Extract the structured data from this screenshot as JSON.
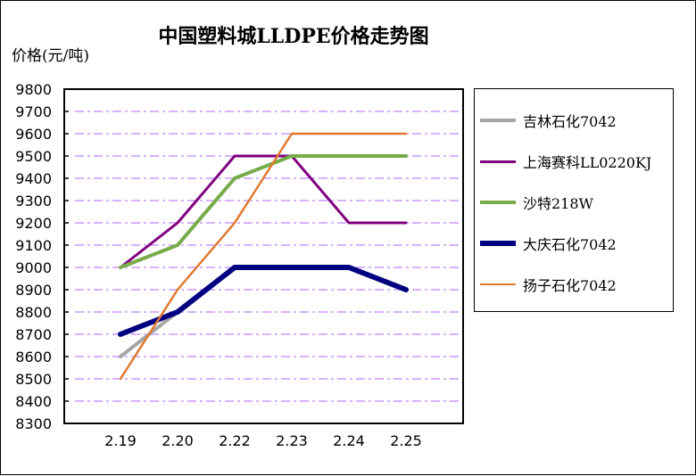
{
  "chart_data": {
    "type": "line",
    "title": "中国塑料城LLDPE价格走势图",
    "ylabel": "价格(元/吨)",
    "xlabel": "",
    "categories": [
      "2.19",
      "2.20",
      "2.22",
      "2.23",
      "2.24",
      "2.25"
    ],
    "ylim": [
      8300,
      9800
    ],
    "yticks": [
      "9800",
      "9700",
      "9600",
      "9500",
      "9400",
      "9300",
      "9200",
      "9100",
      "9000",
      "8900",
      "8800",
      "8700",
      "8600",
      "8500",
      "8400",
      "8300"
    ],
    "grid": true,
    "legend_position": "right",
    "series": [
      {
        "name": "吉林石化7042",
        "color": "#a6a6a6",
        "values": [
          8600,
          8800,
          9000,
          9000,
          9000,
          8900
        ]
      },
      {
        "name": "上海赛科LL0220KJ",
        "color": "#800080",
        "values": [
          9000,
          9200,
          9500,
          9500,
          9200,
          9200
        ]
      },
      {
        "name": "沙特218W",
        "color": "#77ac48",
        "values": [
          9000,
          9100,
          9400,
          9500,
          9500,
          9500
        ]
      },
      {
        "name": "大庆石化7042",
        "color": "#000080",
        "values": [
          8700,
          8800,
          9000,
          9000,
          9000,
          8900
        ]
      },
      {
        "name": "扬子石化7042",
        "color": "#e07830",
        "values": [
          8500,
          8900,
          9200,
          9600,
          9600,
          9600
        ]
      }
    ],
    "gridline_color": "#cc99ff"
  }
}
